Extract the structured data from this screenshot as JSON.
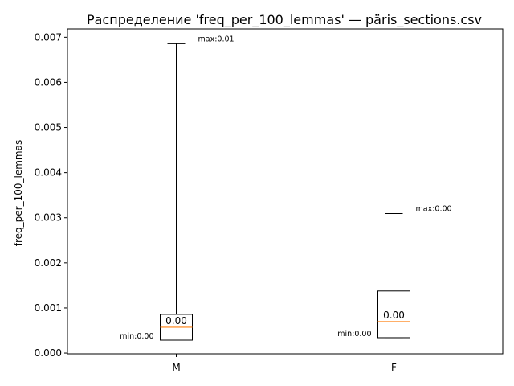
{
  "chart_data": {
    "type": "box",
    "title": "Распределение 'freq_per_100_lemmas' — päris_sections.csv",
    "xlabel": "",
    "ylabel": "freq_per_100_lemmas",
    "ylim": [
      -1.69e-05,
      0.0071842
    ],
    "y_ticks": [
      0.0,
      0.001,
      0.002,
      0.003,
      0.004,
      0.005,
      0.006,
      0.007
    ],
    "y_tick_labels": [
      "0.000",
      "0.001",
      "0.002",
      "0.003",
      "0.004",
      "0.005",
      "0.006",
      "0.007"
    ],
    "grid": false,
    "categories": [
      "M",
      "F"
    ],
    "boxes": [
      {
        "category": "M",
        "whisker_low": 0.000286,
        "q1": 0.000286,
        "median": 0.000572,
        "q3": 0.000858,
        "whisker_high": 0.006857,
        "median_label": "0.00",
        "min_label": "min:0.00",
        "max_label": "max:0.01"
      },
      {
        "category": "F",
        "whisker_low": 0.00034,
        "q1": 0.00034,
        "median": 0.000697,
        "q3": 0.001377,
        "whisker_high": 0.003094,
        "median_label": "0.00",
        "min_label": "min:0.00",
        "max_label": "max:0.00"
      }
    ],
    "colors": {
      "box": "#000000",
      "median": "#ff7f0e",
      "whisker": "#000000"
    }
  }
}
